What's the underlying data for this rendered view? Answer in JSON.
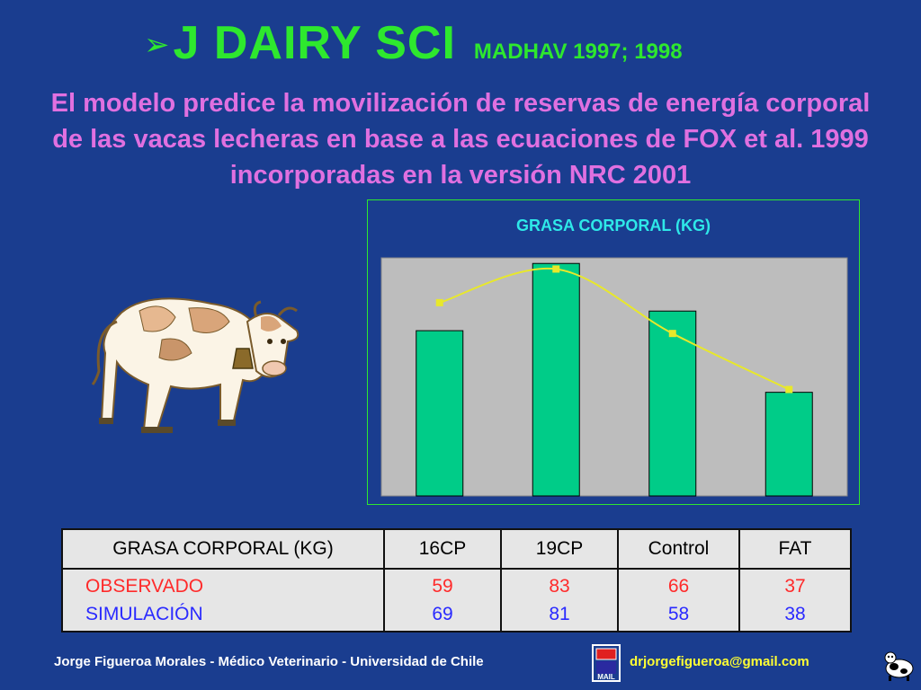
{
  "title": {
    "arrow": "➢",
    "main": "J DAIRY SCI",
    "sub": "MADHAV 1997; 1998"
  },
  "intro": "El modelo predice la movilización de reservas de energía corporal de las vacas lecheras en base a las ecuaciones de FOX et al. 1999 incorporadas en la versión NRC 2001",
  "colors": {
    "background": "#1a3d8f",
    "title": "#2ee82e",
    "intro": "#e070e0",
    "bar": "#00cc88",
    "line": "#e8e82a",
    "plot_bg": "#bdbdbd",
    "observed": "#ff2a2a",
    "simulated": "#2a2aff",
    "footer": "#ffffff",
    "email": "#ffff33"
  },
  "chart_data": {
    "type": "bar",
    "title": "GRASA CORPORAL (KG)",
    "categories": [
      "16CP",
      "19CP",
      "Control",
      "FAT"
    ],
    "series": [
      {
        "kind": "bar",
        "values": [
          59,
          83,
          66,
          37
        ]
      },
      {
        "kind": "line",
        "values": [
          69,
          81,
          58,
          38
        ]
      }
    ],
    "ylim": [
      0,
      85
    ],
    "grid": false,
    "legend": "none"
  },
  "table": {
    "header": [
      "GRASA CORPORAL (KG)",
      "16CP",
      "19CP",
      "Control",
      "FAT"
    ],
    "row_labels": [
      "OBSERVADO",
      "SIMULACIÓN"
    ],
    "observed": [
      "59",
      "83",
      "66",
      "37"
    ],
    "simulated": [
      "69",
      "81",
      "58",
      "38"
    ]
  },
  "footer": {
    "author": "Jorge Figueroa Morales  -  Médico Veterinario  -  Universidad de Chile",
    "mail_label": "MAIL",
    "email": "drjorgefigueroa@gmail.com"
  },
  "icons": [
    "arrow-bullet-icon",
    "cow-illustration",
    "mail-icon",
    "cow-icon"
  ]
}
